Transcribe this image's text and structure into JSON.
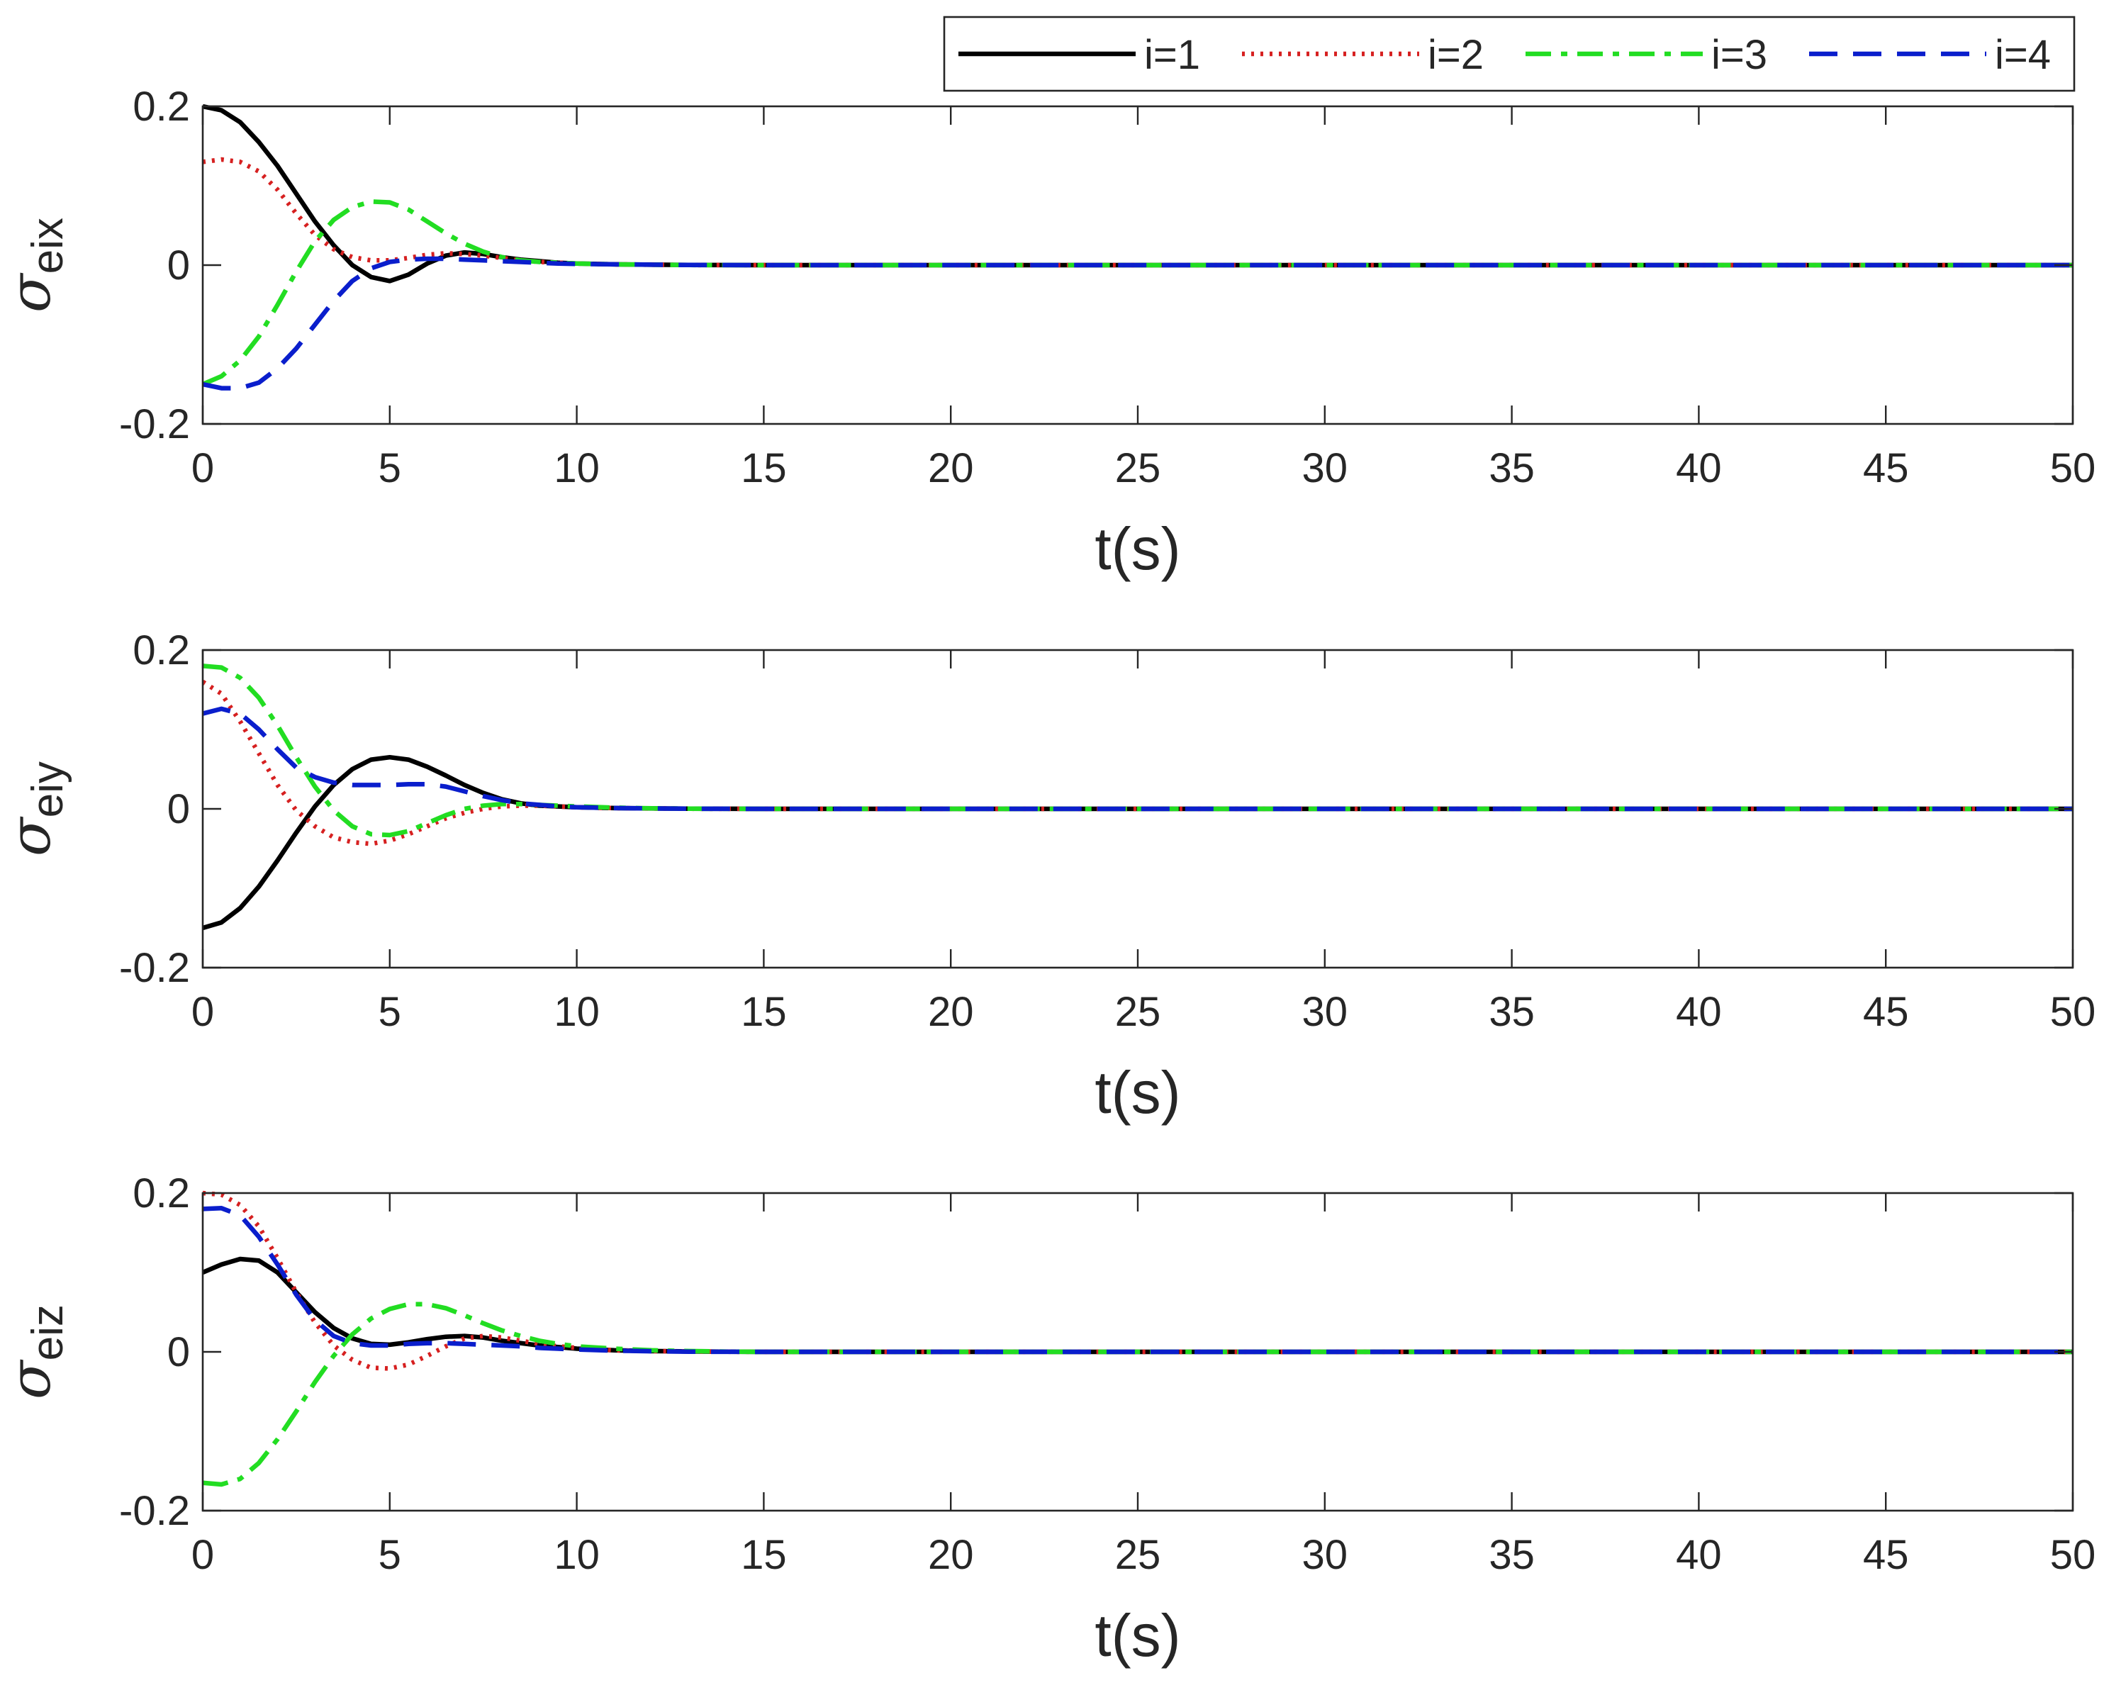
{
  "legend": {
    "placement": "top-right",
    "entries": [
      {
        "label": "i=1",
        "color": "#000000",
        "style": "solid"
      },
      {
        "label": "i=2",
        "color": "#d62020",
        "style": "dotted"
      },
      {
        "label": "i=3",
        "color": "#22dd22",
        "style": "dashdot"
      },
      {
        "label": "i=4",
        "color": "#0a1ecc",
        "style": "dashed"
      }
    ]
  },
  "chart_data": [
    {
      "type": "line",
      "title": "",
      "xlabel": "t(s)",
      "ylabel": {
        "symbol": "σ",
        "subscript": "eix"
      },
      "xlim": [
        0,
        50
      ],
      "ylim": [
        -0.2,
        0.2
      ],
      "xticks": [
        0,
        5,
        10,
        15,
        20,
        25,
        30,
        35,
        40,
        45,
        50
      ],
      "yticks": [
        -0.2,
        0,
        0.2
      ],
      "ytick_labels": [
        "-0.2",
        "0",
        "0.2"
      ],
      "grid": false,
      "x": [
        0,
        0.5,
        1,
        1.5,
        2,
        2.5,
        3,
        3.5,
        4,
        4.5,
        5,
        5.5,
        6,
        6.5,
        7,
        7.5,
        8,
        8.5,
        9,
        9.5,
        10,
        11,
        12,
        13,
        14,
        15,
        20,
        30,
        40,
        50
      ],
      "series": [
        {
          "name": "i=1",
          "values": [
            0.2,
            0.195,
            0.18,
            0.155,
            0.125,
            0.09,
            0.055,
            0.025,
            0.0,
            -0.015,
            -0.02,
            -0.012,
            0.002,
            0.012,
            0.016,
            0.014,
            0.01,
            0.007,
            0.005,
            0.003,
            0.002,
            0.001,
            0.0005,
            0.0002,
            0.0001,
            0,
            0,
            0,
            0,
            0
          ]
        },
        {
          "name": "i=2",
          "values": [
            0.13,
            0.133,
            0.13,
            0.118,
            0.095,
            0.065,
            0.038,
            0.02,
            0.01,
            0.006,
            0.006,
            0.009,
            0.013,
            0.015,
            0.014,
            0.012,
            0.009,
            0.006,
            0.004,
            0.003,
            0.002,
            0.001,
            0.0005,
            0.0002,
            0.0001,
            0,
            0,
            0,
            0,
            0
          ]
        },
        {
          "name": "i=3",
          "values": [
            -0.15,
            -0.14,
            -0.12,
            -0.09,
            -0.05,
            -0.008,
            0.03,
            0.057,
            0.073,
            0.08,
            0.079,
            0.07,
            0.055,
            0.04,
            0.027,
            0.017,
            0.01,
            0.006,
            0.004,
            0.003,
            0.002,
            0.001,
            0.0005,
            0.0002,
            0.0001,
            0,
            0,
            0,
            0,
            0
          ]
        },
        {
          "name": "i=4",
          "values": [
            -0.15,
            -0.155,
            -0.155,
            -0.148,
            -0.13,
            -0.105,
            -0.075,
            -0.045,
            -0.02,
            -0.004,
            0.004,
            0.007,
            0.008,
            0.008,
            0.007,
            0.006,
            0.005,
            0.004,
            0.003,
            0.002,
            0.0015,
            0.001,
            0.0005,
            0.0002,
            0.0001,
            0,
            0,
            0,
            0,
            0
          ]
        }
      ]
    },
    {
      "type": "line",
      "title": "",
      "xlabel": "t(s)",
      "ylabel": {
        "symbol": "σ",
        "subscript": "eiy"
      },
      "xlim": [
        0,
        50
      ],
      "ylim": [
        -0.2,
        0.2
      ],
      "xticks": [
        0,
        5,
        10,
        15,
        20,
        25,
        30,
        35,
        40,
        45,
        50
      ],
      "yticks": [
        -0.2,
        0,
        0.2
      ],
      "ytick_labels": [
        "-0.2",
        "0",
        "0.2"
      ],
      "grid": false,
      "x": [
        0,
        0.5,
        1,
        1.5,
        2,
        2.5,
        3,
        3.5,
        4,
        4.5,
        5,
        5.5,
        6,
        6.5,
        7,
        7.5,
        8,
        8.5,
        9,
        9.5,
        10,
        11,
        12,
        13,
        14,
        15,
        20,
        30,
        40,
        50
      ],
      "series": [
        {
          "name": "i=1",
          "values": [
            -0.15,
            -0.143,
            -0.125,
            -0.098,
            -0.065,
            -0.03,
            0.003,
            0.03,
            0.05,
            0.062,
            0.065,
            0.062,
            0.053,
            0.042,
            0.03,
            0.02,
            0.012,
            0.007,
            0.004,
            0.003,
            0.002,
            0.001,
            0.0005,
            0.0002,
            0.0001,
            0,
            0,
            0,
            0,
            0
          ]
        },
        {
          "name": "i=2",
          "values": [
            0.16,
            0.145,
            0.11,
            0.07,
            0.03,
            -0.002,
            -0.022,
            -0.036,
            -0.042,
            -0.044,
            -0.04,
            -0.032,
            -0.022,
            -0.012,
            -0.005,
            0.0,
            0.003,
            0.004,
            0.004,
            0.003,
            0.002,
            0.001,
            0.0005,
            0.0002,
            0.0001,
            0,
            0,
            0,
            0,
            0
          ]
        },
        {
          "name": "i=3",
          "values": [
            0.18,
            0.178,
            0.165,
            0.14,
            0.105,
            0.065,
            0.028,
            -0.002,
            -0.022,
            -0.032,
            -0.033,
            -0.028,
            -0.018,
            -0.008,
            0.0,
            0.004,
            0.006,
            0.006,
            0.005,
            0.004,
            0.003,
            0.0015,
            0.0007,
            0.0003,
            0.0001,
            0,
            0,
            0,
            0,
            0
          ]
        },
        {
          "name": "i=4",
          "values": [
            0.12,
            0.126,
            0.12,
            0.1,
            0.075,
            0.052,
            0.04,
            0.033,
            0.03,
            0.03,
            0.03,
            0.031,
            0.031,
            0.028,
            0.022,
            0.016,
            0.011,
            0.007,
            0.005,
            0.003,
            0.002,
            0.001,
            0.0005,
            0.0002,
            0.0001,
            0,
            0,
            0,
            0,
            0
          ]
        }
      ]
    },
    {
      "type": "line",
      "title": "",
      "xlabel": "t(s)",
      "ylabel": {
        "symbol": "σ",
        "subscript": "eiz"
      },
      "xlim": [
        0,
        50
      ],
      "ylim": [
        -0.2,
        0.2
      ],
      "xticks": [
        0,
        5,
        10,
        15,
        20,
        25,
        30,
        35,
        40,
        45,
        50
      ],
      "yticks": [
        -0.2,
        0,
        0.2
      ],
      "ytick_labels": [
        "-0.2",
        "0",
        "0.2"
      ],
      "grid": false,
      "x": [
        0,
        0.5,
        1,
        1.5,
        2,
        2.5,
        3,
        3.5,
        4,
        4.5,
        5,
        5.5,
        6,
        6.5,
        7,
        7.5,
        8,
        8.5,
        9,
        9.5,
        10,
        11,
        12,
        13,
        14,
        15,
        20,
        30,
        40,
        50
      ],
      "series": [
        {
          "name": "i=1",
          "values": [
            0.1,
            0.11,
            0.117,
            0.115,
            0.1,
            0.075,
            0.05,
            0.03,
            0.017,
            0.01,
            0.009,
            0.012,
            0.016,
            0.019,
            0.02,
            0.018,
            0.014,
            0.011,
            0.008,
            0.006,
            0.004,
            0.002,
            0.001,
            0.0005,
            0.0002,
            0,
            0,
            0,
            0,
            0
          ]
        },
        {
          "name": "i=2",
          "values": [
            0.2,
            0.198,
            0.185,
            0.158,
            0.118,
            0.075,
            0.037,
            0.008,
            -0.01,
            -0.02,
            -0.021,
            -0.016,
            -0.005,
            0.007,
            0.017,
            0.02,
            0.018,
            0.014,
            0.01,
            0.007,
            0.005,
            0.002,
            0.001,
            0.0005,
            0.0002,
            0,
            0,
            0,
            0,
            0
          ]
        },
        {
          "name": "i=3",
          "values": [
            -0.165,
            -0.167,
            -0.16,
            -0.14,
            -0.11,
            -0.075,
            -0.038,
            -0.005,
            0.022,
            0.042,
            0.054,
            0.06,
            0.06,
            0.055,
            0.046,
            0.036,
            0.027,
            0.02,
            0.014,
            0.01,
            0.007,
            0.004,
            0.002,
            0.001,
            0.0004,
            0,
            0,
            0,
            0,
            0
          ]
        },
        {
          "name": "i=4",
          "values": [
            0.18,
            0.181,
            0.172,
            0.145,
            0.11,
            0.072,
            0.04,
            0.02,
            0.011,
            0.008,
            0.008,
            0.01,
            0.011,
            0.011,
            0.01,
            0.009,
            0.008,
            0.007,
            0.005,
            0.004,
            0.003,
            0.0015,
            0.0008,
            0.0003,
            0.0001,
            0,
            0,
            0,
            0,
            0
          ]
        }
      ]
    }
  ]
}
